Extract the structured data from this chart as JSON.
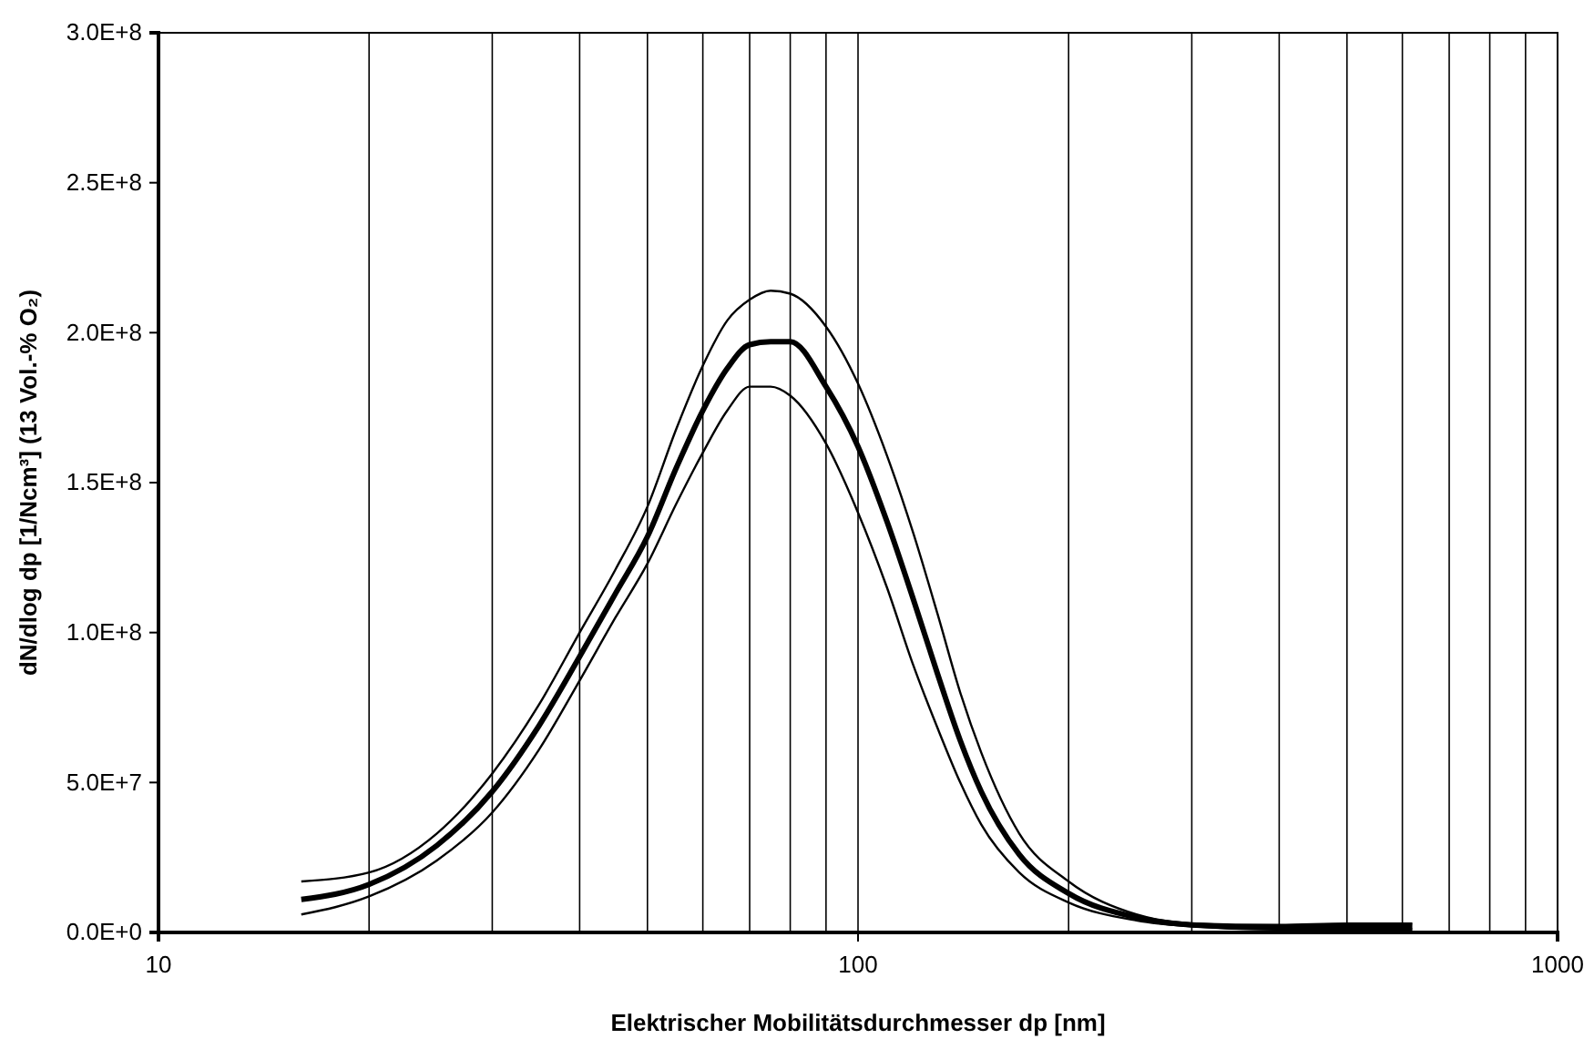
{
  "chart_data": {
    "type": "line",
    "xlabel": "Elektrischer Mobilitätsdurchmesser dp [nm]",
    "ylabel": "dN/dlog dp [1/Ncm³] (13 Vol.-% O₂)",
    "log": "x",
    "grid": "x",
    "marker": "none",
    "line_style": "solid",
    "x": [
      16,
      20,
      25,
      30,
      35,
      40,
      45,
      50,
      55,
      60,
      65,
      70,
      75,
      80,
      90,
      100,
      110,
      120,
      130,
      140,
      150,
      170,
      200,
      250,
      300,
      400,
      500,
      620
    ],
    "series": [
      {
        "color": "#000000",
        "values": [
          11000000.0,
          16000000.0,
          29000000.0,
          47000000.0,
          69000000.0,
          92000000.0,
          113000000.0,
          132000000.0,
          155000000.0,
          174000000.0,
          188000000.0,
          196000000.0,
          197000000.0,
          197000000.0,
          182000000.0,
          162000000.0,
          137000000.0,
          111000000.0,
          86000000.0,
          64000000.0,
          47000000.0,
          26000000.0,
          13000000.0,
          5000000.0,
          2500000.0,
          1500000.0,
          2000000.0,
          2000000.0
        ]
      },
      {
        "color": "#000000",
        "values": [
          17000000.0,
          20000000.0,
          33000000.0,
          53000000.0,
          76000000.0,
          100000000.0,
          121000000.0,
          142000000.0,
          168000000.0,
          189000000.0,
          204000000.0,
          211000000.0,
          214000000.0,
          213000000.0,
          202000000.0,
          183000000.0,
          159000000.0,
          133000000.0,
          106000000.0,
          80000000.0,
          60000000.0,
          33000000.0,
          17000000.0,
          6000000.0,
          3000000.0,
          2500000.0,
          3000000.0,
          3000000.0
        ]
      },
      {
        "color": "#000000",
        "values": [
          6000000.0,
          12000000.0,
          24000000.0,
          40000000.0,
          61000000.0,
          84000000.0,
          105000000.0,
          123000000.0,
          143000000.0,
          160000000.0,
          174000000.0,
          182000000.0,
          182000000.0,
          179000000.0,
          163000000.0,
          140000000.0,
          115000000.0,
          89000000.0,
          68000000.0,
          50000000.0,
          36000000.0,
          20000000.0,
          10000000.0,
          4000000.0,
          2000000.0,
          1000000.0,
          1000000.0,
          1000000.0
        ]
      }
    ],
    "xlim": [
      10,
      1000
    ],
    "xticks": [
      10,
      {
        "value": 20,
        "label": null
      },
      {
        "value": 30,
        "label": null
      },
      {
        "value": 40,
        "label": null
      },
      {
        "value": 50,
        "label": null
      },
      {
        "value": 60,
        "label": null
      },
      {
        "value": 70,
        "label": null
      },
      {
        "value": 80,
        "label": null
      },
      {
        "value": 90,
        "label": null
      },
      100,
      {
        "value": 200,
        "label": null
      },
      {
        "value": 300,
        "label": null
      },
      {
        "value": 400,
        "label": null
      },
      {
        "value": 500,
        "label": null
      },
      {
        "value": 600,
        "label": null
      },
      {
        "value": 700,
        "label": null
      },
      {
        "value": 800,
        "label": null
      },
      {
        "value": 900,
        "label": null
      },
      1000
    ],
    "ylim": [
      0,
      300000000.0
    ],
    "yticks": [
      {
        "value": 0,
        "label": "0.0E+0"
      },
      {
        "value": 50000000.0,
        "label": "5.0E+7"
      },
      {
        "value": 100000000.0,
        "label": "1.0E+8"
      },
      {
        "value": 150000000.0,
        "label": "1.5E+8"
      },
      {
        "value": 200000000.0,
        "label": "2.0E+8"
      },
      {
        "value": 250000000.0,
        "label": "2.5E+8"
      },
      {
        "value": 300000000.0,
        "label": "3.0E+8"
      }
    ]
  }
}
